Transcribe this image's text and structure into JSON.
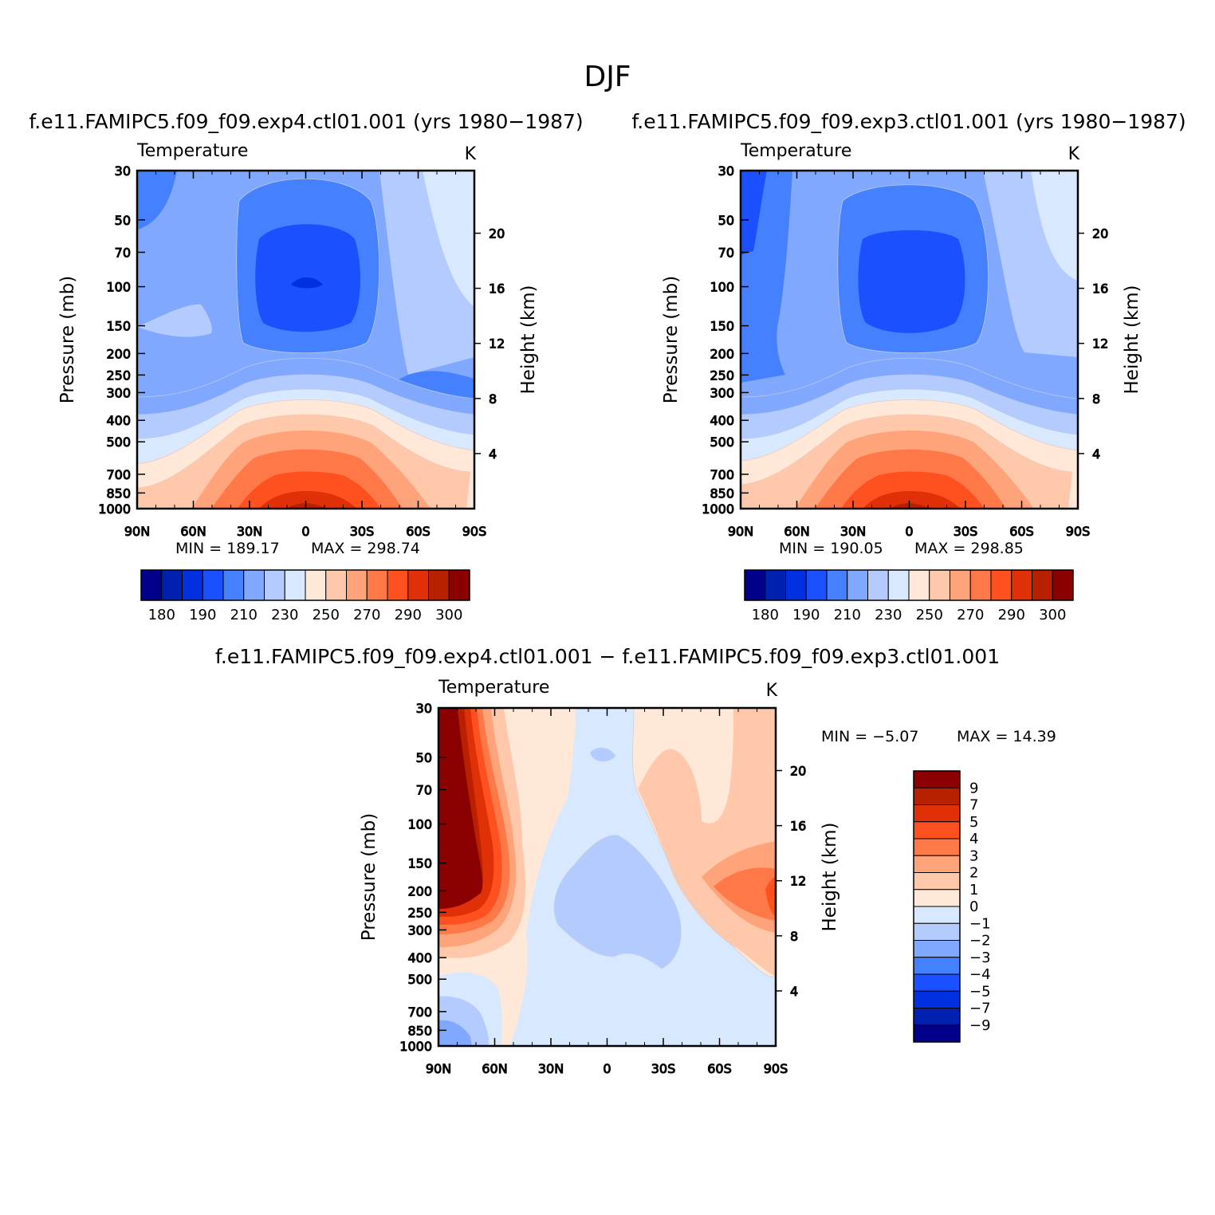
{
  "figure": {
    "title": "DJF",
    "panels": {
      "exp4": {
        "subtitle": "f.e11.FAMIPC5.f09_f09.exp4.ctl01.001 (yrs 1980−1987)",
        "variable": "Temperature",
        "units": "K",
        "min_label": "MIN = 189.17",
        "max_label": "MAX = 298.74"
      },
      "exp3": {
        "subtitle": "f.e11.FAMIPC5.f09_f09.exp3.ctl01.001 (yrs 1980−1987)",
        "variable": "Temperature",
        "units": "K",
        "min_label": "MIN = 190.05",
        "max_label": "MAX = 298.85"
      },
      "diff": {
        "subtitle": "f.e11.FAMIPC5.f09_f09.exp4.ctl01.001 − f.e11.FAMIPC5.f09_f09.exp3.ctl01.001",
        "variable": "Temperature",
        "units": "K",
        "min_label": "MIN = −5.07",
        "max_label": "MAX = 14.39"
      }
    },
    "axes": {
      "ylabel_left": "Pressure (mb)",
      "ylabel_right": "Height (km)",
      "x_ticks": [
        "90N",
        "60N",
        "30N",
        "0",
        "30S",
        "60S",
        "90S"
      ],
      "x_values": [
        90,
        60,
        30,
        0,
        -30,
        -60,
        -90
      ],
      "p_ticks": [
        "30",
        "50",
        "70",
        "100",
        "150",
        "200",
        "250",
        "300",
        "400",
        "500",
        "700",
        "850",
        "1000"
      ],
      "p_values": [
        30,
        50,
        70,
        100,
        150,
        200,
        250,
        300,
        400,
        500,
        700,
        850,
        1000
      ],
      "z_ticks": [
        "4",
        "8",
        "12",
        "16",
        "20"
      ],
      "z_values": [
        4,
        8,
        12,
        16,
        20
      ]
    },
    "colorbar_abs": {
      "labels": [
        "180",
        "190",
        "210",
        "230",
        "250",
        "270",
        "290",
        "300"
      ],
      "colors": [
        "#00008b",
        "#0020b0",
        "#0030e0",
        "#1a50ff",
        "#4580ff",
        "#80a8ff",
        "#b4cbff",
        "#d8e8ff",
        "#ffe8d8",
        "#ffc8aa",
        "#ffa47a",
        "#ff7848",
        "#ff5020",
        "#e03008",
        "#b82000",
        "#8b0000"
      ]
    },
    "colorbar_diff": {
      "labels": [
        "9",
        "7",
        "5",
        "4",
        "3",
        "2",
        "1",
        "0",
        "−1",
        "−2",
        "−3",
        "−4",
        "−5",
        "−7",
        "−9"
      ],
      "colors": [
        "#8b0000",
        "#b82000",
        "#e03008",
        "#ff5020",
        "#ff7848",
        "#ffa47a",
        "#ffc8aa",
        "#ffe8d8",
        "#d8e8ff",
        "#b4cbff",
        "#80a8ff",
        "#4580ff",
        "#1a50ff",
        "#0030e0",
        "#0020b0",
        "#00008b"
      ]
    }
  },
  "chart_data": [
    {
      "type": "heatmap",
      "name": "f.e11.FAMIPC5.f09_f09.exp4.ctl01.001 (yrs 1980−1987)",
      "title": "Temperature",
      "units": "K",
      "x": [
        90,
        60,
        30,
        0,
        -30,
        -60,
        -90
      ],
      "y": [
        30,
        50,
        70,
        100,
        150,
        200,
        250,
        300,
        400,
        500,
        700,
        850,
        1000
      ],
      "min": 189.17,
      "max": 298.74
    },
    {
      "type": "heatmap",
      "name": "f.e11.FAMIPC5.f09_f09.exp3.ctl01.001 (yrs 1980−1987)",
      "title": "Temperature",
      "units": "K",
      "x": [
        90,
        60,
        30,
        0,
        -30,
        -60,
        -90
      ],
      "y": [
        30,
        50,
        70,
        100,
        150,
        200,
        250,
        300,
        400,
        500,
        700,
        850,
        1000
      ],
      "min": 190.05,
      "max": 298.85
    },
    {
      "type": "heatmap",
      "name": "f.e11.FAMIPC5.f09_f09.exp4.ctl01.001 − f.e11.FAMIPC5.f09_f09.exp3.ctl01.001",
      "title": "Temperature",
      "units": "K",
      "x": [
        90,
        60,
        30,
        0,
        -30,
        -60,
        -90
      ],
      "y": [
        30,
        50,
        70,
        100,
        150,
        200,
        250,
        300,
        400,
        500,
        700,
        850,
        1000
      ],
      "min": -5.07,
      "max": 14.39
    }
  ]
}
